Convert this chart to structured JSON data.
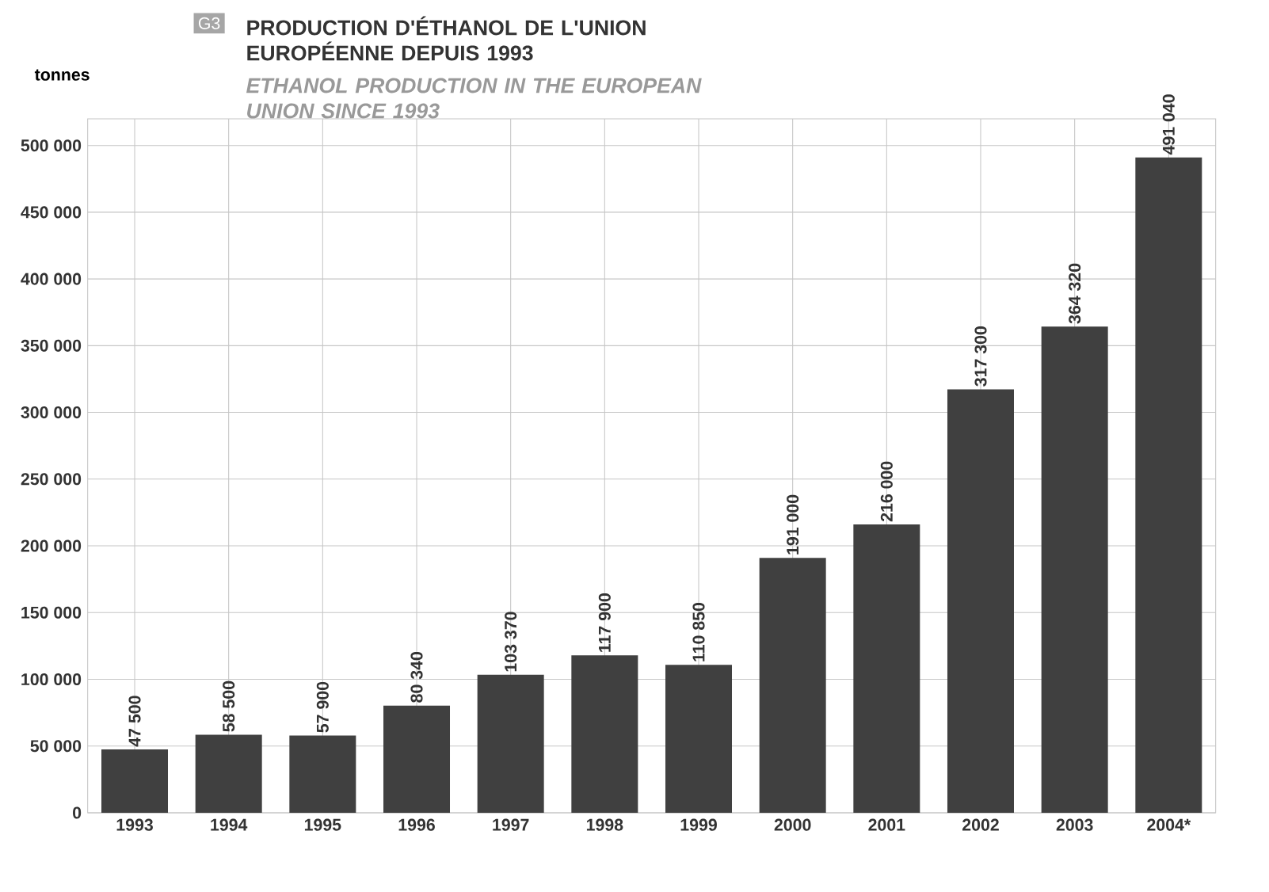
{
  "chart_data": {
    "type": "bar",
    "title": "PRODUCTION D'ÉTHANOL DE L'UNION EUROPÉENNE DEPUIS 1993",
    "subtitle": "ETHANOL PRODUCTION IN THE EUROPEAN UNION SINCE 1993",
    "ylabel": "tonnes",
    "annotations": [
      "G3"
    ],
    "categories": [
      "1993",
      "1994",
      "1995",
      "1996",
      "1997",
      "1998",
      "1999",
      "2000",
      "2001",
      "2002",
      "2003",
      "2004*"
    ],
    "values": [
      47500,
      58500,
      57900,
      80340,
      103370,
      117900,
      110850,
      191000,
      216000,
      317300,
      364320,
      491040
    ],
    "value_labels": [
      "47 500",
      "58 500",
      "57 900",
      "80 340",
      "103 370",
      "117 900",
      "110 850",
      "191 000",
      "216 000",
      "317 300",
      "364 320",
      "491 040"
    ],
    "color": "#404040",
    "ylim": [
      0,
      520000
    ],
    "yticks": [
      {
        "value": 0,
        "label": "0"
      },
      {
        "value": 50000,
        "label": "50 000"
      },
      {
        "value": 100000,
        "label": "100 000"
      },
      {
        "value": 150000,
        "label": "150 000"
      },
      {
        "value": 200000,
        "label": "200 000"
      },
      {
        "value": 250000,
        "label": "250 000"
      },
      {
        "value": 300000,
        "label": "300 000"
      },
      {
        "value": 350000,
        "label": "350 000"
      },
      {
        "value": 400000,
        "label": "400 000"
      },
      {
        "value": 450000,
        "label": "450 000"
      },
      {
        "value": 500000,
        "label": "500 000"
      }
    ],
    "grid": true
  }
}
